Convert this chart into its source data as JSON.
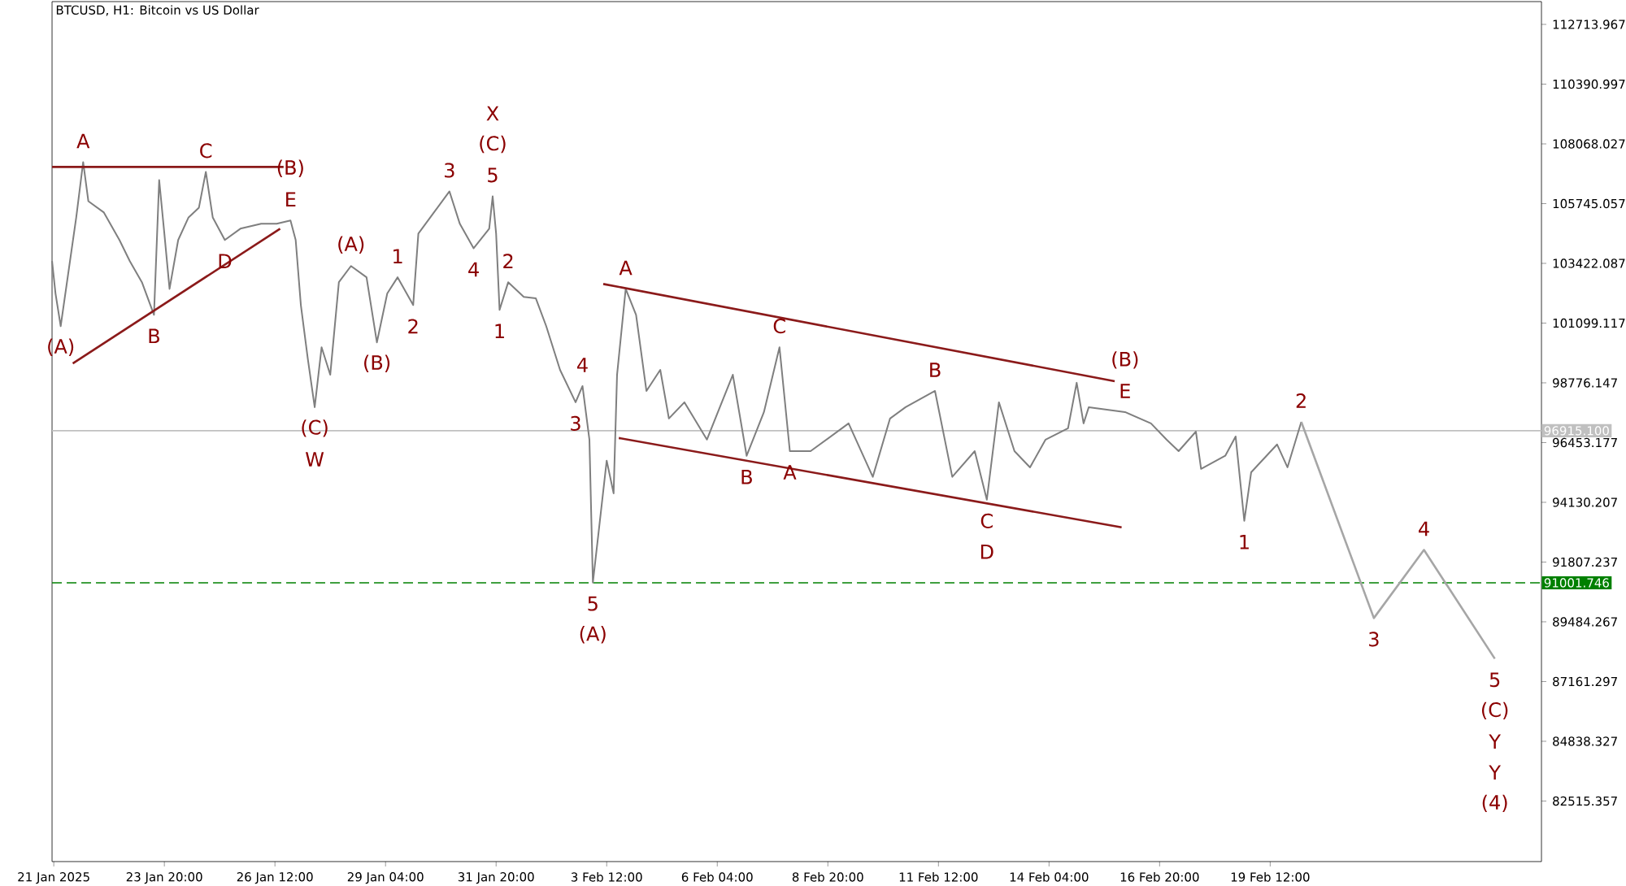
{
  "chart_data": {
    "type": "line",
    "title": "BTCUSD, H1:  Bitcoin vs US Dollar",
    "xlim": [
      "2025-01-21T03:00",
      "2025-02-26T01:00"
    ],
    "ylim": [
      80160,
      113600
    ],
    "xticks": [
      {
        "value": "2025-01-21T04:00",
        "label": "21 Jan 2025"
      },
      {
        "value": "2025-01-23T20:00",
        "label": "23 Jan 20:00"
      },
      {
        "value": "2025-01-26T12:00",
        "label": "26 Jan 12:00"
      },
      {
        "value": "2025-01-29T04:00",
        "label": "29 Jan 04:00"
      },
      {
        "value": "2025-01-31T20:00",
        "label": "31 Jan 20:00"
      },
      {
        "value": "2025-02-03T12:00",
        "label": "3 Feb 12:00"
      },
      {
        "value": "2025-02-06T04:00",
        "label": "6 Feb 04:00"
      },
      {
        "value": "2025-02-08T20:00",
        "label": "8 Feb 20:00"
      },
      {
        "value": "2025-02-11T12:00",
        "label": "11 Feb 12:00"
      },
      {
        "value": "2025-02-14T04:00",
        "label": "14 Feb 04:00"
      },
      {
        "value": "2025-02-16T20:00",
        "label": "16 Feb 20:00"
      },
      {
        "value": "2025-02-19T12:00",
        "label": "19 Feb 12:00"
      }
    ],
    "yticks": [
      112713.967,
      110390.997,
      108068.027,
      105745.057,
      103422.087,
      101099.117,
      98776.147,
      96453.177,
      94130.207,
      91807.237,
      89484.267,
      87161.297,
      84838.327,
      82515.357
    ],
    "series": [
      {
        "color": "#7f7f7f",
        "x": [
          "2025-01-21T03:00",
          "2025-01-21T05:00",
          "2025-01-21T08:00",
          "2025-01-21T17:00",
          "2025-01-21T21:00",
          "2025-01-22T00:00",
          "2025-01-22T09:00",
          "2025-01-22T18:00",
          "2025-01-23T00:00",
          "2025-01-23T07:00",
          "2025-01-23T14:00",
          "2025-01-23T17:00",
          "2025-01-23T20:00",
          "2025-01-23T23:00",
          "2025-01-24T04:00",
          "2025-01-24T10:00",
          "2025-01-24T16:00",
          "2025-01-24T20:00",
          "2025-01-25T00:00",
          "2025-01-25T07:00",
          "2025-01-25T16:00",
          "2025-01-26T04:00",
          "2025-01-26T13:00",
          "2025-01-26T21:00",
          "2025-01-27T00:00",
          "2025-01-27T03:00",
          "2025-01-27T07:00",
          "2025-01-27T11:00",
          "2025-01-27T15:00",
          "2025-01-27T20:00",
          "2025-01-28T01:00",
          "2025-01-28T08:00",
          "2025-01-28T17:00",
          "2025-01-28T23:00",
          "2025-01-29T05:00",
          "2025-01-29T11:00",
          "2025-01-29T20:00",
          "2025-01-29T23:00",
          "2025-01-30T08:00",
          "2025-01-30T17:00",
          "2025-01-30T23:00",
          "2025-01-31T07:00",
          "2025-01-31T16:00",
          "2025-01-31T18:00",
          "2025-01-31T20:00",
          "2025-01-31T22:00",
          "2025-02-01T03:00",
          "2025-02-01T12:00",
          "2025-02-01T19:00",
          "2025-02-02T01:00",
          "2025-02-02T09:00",
          "2025-02-02T18:00",
          "2025-02-02T22:00",
          "2025-02-03T02:00",
          "2025-02-03T04:00",
          "2025-02-03T07:00",
          "2025-02-03T12:00",
          "2025-02-03T16:00",
          "2025-02-03T18:00",
          "2025-02-03T23:00",
          "2025-02-04T05:00",
          "2025-02-04T11:00",
          "2025-02-04T19:00",
          "2025-02-05T00:00",
          "2025-02-05T09:00",
          "2025-02-05T22:00",
          "2025-02-06T13:00",
          "2025-02-06T21:00",
          "2025-02-07T07:00",
          "2025-02-07T16:00",
          "2025-02-07T22:00",
          "2025-02-08T10:00",
          "2025-02-09T08:00",
          "2025-02-09T22:00",
          "2025-02-10T08:00",
          "2025-02-10T17:00",
          "2025-02-11T10:00",
          "2025-02-11T20:00",
          "2025-02-12T09:00",
          "2025-02-12T16:00",
          "2025-02-12T23:00",
          "2025-02-13T08:00",
          "2025-02-13T17:00",
          "2025-02-14T02:00",
          "2025-02-14T15:00",
          "2025-02-14T20:00",
          "2025-02-15T00:00",
          "2025-02-15T03:00",
          "2025-02-16T00:00",
          "2025-02-16T15:00",
          "2025-02-17T00:00",
          "2025-02-17T07:00",
          "2025-02-17T17:00",
          "2025-02-17T20:00",
          "2025-02-18T10:00",
          "2025-02-18T16:00",
          "2025-02-18T21:00",
          "2025-02-19T01:00",
          "2025-02-19T16:00",
          "2025-02-19T22:00",
          "2025-02-20T06:00"
        ],
        "values": [
          103510,
          102250,
          100980,
          105210,
          107360,
          105840,
          105400,
          104330,
          103510,
          102690,
          101420,
          106660,
          104580,
          102430,
          104330,
          105210,
          105590,
          106980,
          105210,
          104330,
          104770,
          104960,
          104960,
          105090,
          104330,
          101800,
          99720,
          97830,
          100160,
          99090,
          102690,
          103320,
          102880,
          100350,
          102250,
          102880,
          101800,
          104580,
          105400,
          106220,
          104960,
          104010,
          104770,
          106030,
          104580,
          101610,
          102690,
          102120,
          102060,
          100980,
          99280,
          98020,
          98650,
          96570,
          91010,
          92780,
          95750,
          94480,
          99090,
          102430,
          101420,
          98460,
          99280,
          97390,
          98020,
          96570,
          99090,
          95940,
          97640,
          100160,
          96120,
          96120,
          97200,
          95120,
          97390,
          97830,
          98460,
          95120,
          96120,
          94230,
          98020,
          96120,
          95490,
          96570,
          97010,
          98780,
          97200,
          97830,
          97640,
          97200,
          96570,
          96120,
          96880,
          95430,
          95940,
          96690,
          93410,
          95300,
          96380,
          95490,
          97260
        ]
      },
      {
        "color": "#a6a6a6",
        "x": [
          "2025-02-20T06:00",
          "2025-02-22T00:00",
          "2025-02-23T05:00",
          "2025-02-24T22:00"
        ],
        "values": [
          97260,
          89630,
          92280,
          88050
        ]
      },
      {
        "color": "#8b1a1a",
        "x": [
          "2025-01-21T03:00",
          "2025-01-26T17:00"
        ],
        "values": [
          107170,
          107170
        ]
      },
      {
        "color": "#8b1a1a",
        "x": [
          "2025-01-21T15:00",
          "2025-01-26T15:00"
        ],
        "values": [
          99530,
          104770
        ]
      },
      {
        "color": "#8b1a1a",
        "x": [
          "2025-02-03T10:00",
          "2025-02-15T18:00"
        ],
        "values": [
          102620,
          98840
        ]
      },
      {
        "color": "#8b1a1a",
        "x": [
          "2025-02-03T19:00",
          "2025-02-15T22:00"
        ],
        "values": [
          96630,
          93160
        ]
      }
    ],
    "ref_lines": [
      {
        "axis": "y",
        "value": 96915.1,
        "label": "96915.100",
        "color": "#c0c0c0"
      },
      {
        "axis": "y",
        "value": 91001.746,
        "label": "91001.746",
        "color": "#008000",
        "line_style": "dashed"
      }
    ],
    "annotations": [
      {
        "text": "(A)",
        "x": "2025-01-21T08:00",
        "y": 100980
      },
      {
        "text": "A",
        "x": "2025-01-21T21:00",
        "y": 107360
      },
      {
        "text": "B",
        "x": "2025-01-23T14:00",
        "y": 101420
      },
      {
        "text": "C",
        "x": "2025-01-24T20:00",
        "y": 106980
      },
      {
        "text": "D",
        "x": "2025-01-25T07:00",
        "y": 104330
      },
      {
        "text": "E",
        "x": "2025-01-26T21:00",
        "y": 105090
      },
      {
        "text": "(B)",
        "x": "2025-01-26T21:00",
        "y": 105090
      },
      {
        "text": "(C)",
        "x": "2025-01-27T11:00",
        "y": 97830
      },
      {
        "text": "W",
        "x": "2025-01-27T11:00",
        "y": 97830
      },
      {
        "text": "(A)",
        "x": "2025-01-28T08:00",
        "y": 103320
      },
      {
        "text": "(B)",
        "x": "2025-01-28T23:00",
        "y": 100350
      },
      {
        "text": "1",
        "x": "2025-01-29T11:00",
        "y": 102880
      },
      {
        "text": "2",
        "x": "2025-01-29T20:00",
        "y": 101800
      },
      {
        "text": "3",
        "x": "2025-01-30T17:00",
        "y": 106220
      },
      {
        "text": "4",
        "x": "2025-01-31T07:00",
        "y": 104010
      },
      {
        "text": "5",
        "x": "2025-01-31T18:00",
        "y": 106030
      },
      {
        "text": "(C)",
        "x": "2025-01-31T18:00",
        "y": 106030
      },
      "X",
      {
        "text": "1",
        "x": "2025-01-31T22:00",
        "y": 101610
      },
      {
        "text": "2",
        "x": "2025-02-01T03:00",
        "y": 102690
      },
      {
        "text": "3",
        "x": "2025-02-02T18:00",
        "y": 98020
      },
      {
        "text": "4",
        "x": "2025-02-02T22:00",
        "y": 98650
      },
      {
        "text": "5",
        "x": "2025-02-03T04:00",
        "y": 91010
      },
      {
        "text": "(A)",
        "x": "2025-02-03T04:00",
        "y": 91010
      },
      {
        "text": "A",
        "x": "2025-02-03T23:00",
        "y": 102430
      },
      {
        "text": "B",
        "x": "2025-02-06T21:00",
        "y": 95940
      },
      {
        "text": "C",
        "x": "2025-02-07T16:00",
        "y": 100160
      },
      {
        "text": "A",
        "x": "2025-02-07T22:00",
        "y": 96120
      },
      {
        "text": "B",
        "x": "2025-02-11T10:00",
        "y": 98460
      },
      {
        "text": "C",
        "x": "2025-02-12T16:00",
        "y": 94230
      },
      {
        "text": "D",
        "x": "2025-02-12T16:00",
        "y": 94230
      },
      {
        "text": "E",
        "x": "2025-02-16T00:00",
        "y": 97640
      },
      {
        "text": "(B)",
        "x": "2025-02-16T00:00",
        "y": 97640
      },
      {
        "text": "1",
        "x": "2025-02-18T21:00",
        "y": 93410
      },
      {
        "text": "2",
        "x": "2025-02-20T06:00",
        "y": 97260
      },
      {
        "text": "3",
        "x": "2025-02-22T00:00",
        "y": 89630
      },
      {
        "text": "4",
        "x": "2025-02-23T05:00",
        "y": 92280
      },
      {
        "text": "5",
        "x": "2025-02-24T22:00",
        "y": 88050
      },
      {
        "text": "(C)",
        "x": "2025-02-24T22:00",
        "y": 88050
      },
      "Y",
      "Y",
      "(4)"
    ]
  }
}
